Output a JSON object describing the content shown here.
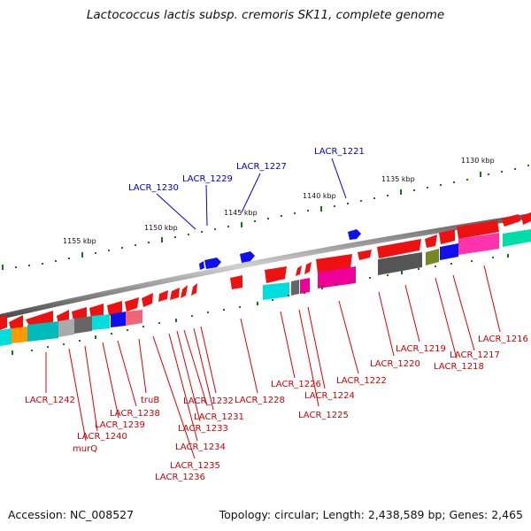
{
  "title": "Lactococcus lactis subsp. cremoris SK11, complete genome",
  "footer": {
    "accession": "Accession: NC_008527",
    "summary": "Topology: circular; Length: 2,438,589 bp; Genes: 2,465"
  },
  "colors": {
    "forward_gene": "#ee1111",
    "label_line_red": "#dd0000",
    "label_line_blue": "#0000cc",
    "backbone": "#888888",
    "tick": "#117711"
  },
  "kbp_labels": [
    "1130 kbp",
    "1135 kbp",
    "1140 kbp",
    "1145 kbp",
    "1150 kbp",
    "1155 kbp"
  ],
  "upper_labels": [
    "LACR_1221",
    "LACR_1227",
    "LACR_1229",
    "LACR_1230"
  ],
  "lower_labels": [
    "LACR_1216",
    "LACR_1217",
    "LACR_1218",
    "LACR_1219",
    "LACR_1220",
    "LACR_1222",
    "LACR_1224",
    "LACR_1225",
    "LACR_1226",
    "LACR_1228",
    "LACR_1231",
    "LACR_1232",
    "LACR_1233",
    "LACR_1234",
    "LACR_1235",
    "LACR_1236",
    "truB",
    "LACR_1238",
    "LACR_1239",
    "LACR_1240",
    "murQ",
    "LACR_1242"
  ]
}
